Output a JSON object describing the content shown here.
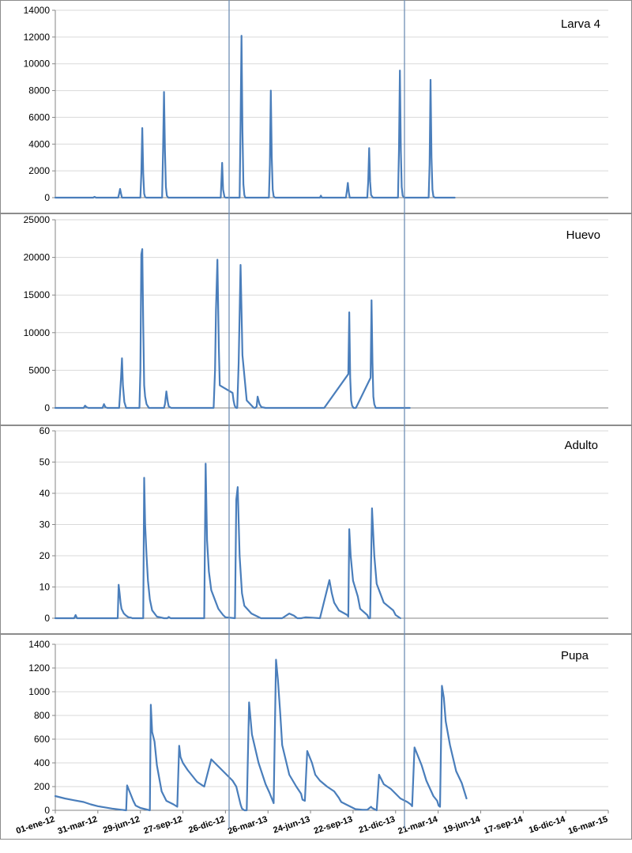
{
  "colors": {
    "series": "#4a7ebb",
    "grid": "#d9d9d9",
    "axis": "#868686",
    "separator": "#6f8fb5",
    "frame": "#8c8c8c",
    "text": "#000000"
  },
  "x_ticks": [
    "01-ene-12",
    "31-mar-12",
    "29-jun-12",
    "27-sep-12",
    "26-dic-12",
    "26-mar-13",
    "24-jun-13",
    "22-sep-13",
    "21-dic-13",
    "21-mar-14",
    "19-jun-14",
    "17-sep-14",
    "16-dic-14",
    "16-mar-15"
  ],
  "chart_data": [
    {
      "type": "line",
      "title": "Larva 4",
      "xlim": [
        0,
        1170
      ],
      "ylim": [
        0,
        14000
      ],
      "yticks": [
        0,
        2000,
        4000,
        6000,
        8000,
        10000,
        12000,
        14000
      ],
      "grid": true,
      "series": [
        {
          "x": [
            0,
            80,
            83,
            86,
            90,
            133,
            135,
            137,
            139,
            141,
            180,
            182,
            184,
            186,
            188,
            190,
            192,
            226,
            228,
            230,
            232,
            234,
            236,
            239,
            345,
            350,
            353,
            355,
            358,
            360,
            390,
            392,
            394,
            396,
            398,
            400,
            402,
            452,
            454,
            456,
            458,
            460,
            462,
            465,
            530,
            560,
            562,
            564,
            566,
            568,
            615,
            617,
            619,
            621,
            623,
            660,
            662,
            664,
            666,
            668,
            672,
            725,
            727,
            729,
            731,
            733,
            735,
            738,
            790,
            792,
            794,
            796,
            798,
            800,
            803,
            845
          ],
          "y": [
            0,
            0,
            60,
            0,
            0,
            0,
            300,
            650,
            300,
            0,
            0,
            1800,
            5200,
            1800,
            300,
            50,
            0,
            0,
            3500,
            7900,
            3500,
            800,
            150,
            0,
            0,
            0,
            2600,
            600,
            50,
            0,
            0,
            5500,
            12100,
            5000,
            1000,
            200,
            0,
            0,
            2500,
            8000,
            3000,
            600,
            100,
            0,
            0,
            0,
            150,
            0,
            0,
            0,
            0,
            500,
            1100,
            400,
            0,
            0,
            1200,
            3700,
            1200,
            200,
            0,
            0,
            3500,
            9500,
            3500,
            800,
            150,
            0,
            0,
            2500,
            8800,
            3000,
            600,
            100,
            0,
            0
          ]
        }
      ]
    },
    {
      "type": "line",
      "title": "Huevo",
      "xlim": [
        0,
        1170
      ],
      "ylim": [
        0,
        25000
      ],
      "yticks": [
        0,
        5000,
        10000,
        15000,
        20000,
        25000
      ],
      "grid": true,
      "series": [
        {
          "x": [
            0,
            60,
            63,
            66,
            70,
            100,
            103,
            106,
            110,
            135,
            137,
            139,
            141,
            143,
            146,
            150,
            178,
            180,
            182,
            184,
            186,
            188,
            190,
            193,
            198,
            230,
            232,
            235,
            238,
            240,
            245,
            250,
            335,
            338,
            340,
            343,
            346,
            348,
            375,
            377,
            379,
            381,
            383,
            385,
            388,
            392,
            396,
            405,
            420,
            423,
            426,
            428,
            432,
            436,
            445,
            560,
            563,
            566,
            569,
            620,
            622,
            624,
            626,
            628,
            631,
            636,
            667,
            669,
            671,
            673,
            675,
            678,
            683,
            715,
            717,
            719,
            721,
            723,
            726,
            731,
            750
          ],
          "y": [
            0,
            0,
            300,
            100,
            0,
            0,
            500,
            100,
            0,
            0,
            2000,
            4000,
            6600,
            3000,
            800,
            0,
            0,
            5000,
            20400,
            21100,
            11000,
            3000,
            1500,
            500,
            0,
            0,
            500,
            2200,
            800,
            200,
            0,
            0,
            0,
            5000,
            13000,
            19700,
            8000,
            3000,
            2000,
            1000,
            400,
            100,
            0,
            0,
            6000,
            19000,
            7000,
            1000,
            0,
            0,
            200,
            1500,
            500,
            100,
            0,
            0,
            0,
            0,
            0,
            4500,
            12700,
            4000,
            1000,
            300,
            0,
            0,
            4000,
            14300,
            6000,
            1500,
            500,
            0,
            0,
            0,
            0,
            0,
            0,
            0,
            0,
            0,
            0
          ]
        }
      ]
    },
    {
      "type": "line",
      "title": "Adulto",
      "xlim": [
        0,
        1170
      ],
      "ylim": [
        0,
        60
      ],
      "yticks": [
        0,
        10,
        20,
        30,
        40,
        50,
        60
      ],
      "grid": true,
      "series": [
        {
          "x": [
            0,
            40,
            43,
            46,
            50,
            68,
            70,
            72,
            74,
            83,
            132,
            134,
            136,
            138,
            140,
            145,
            150,
            155,
            160,
            163,
            168,
            175,
            180,
            186,
            188,
            190,
            193,
            196,
            200,
            205,
            215,
            230,
            237,
            240,
            244,
            250,
            272,
            315,
            318,
            321,
            325,
            330,
            340,
            345,
            350,
            355,
            360,
            380,
            383,
            386,
            390,
            395,
            400,
            415,
            435,
            470,
            480,
            485,
            495,
            505,
            512,
            517,
            520,
            530,
            560,
            580,
            585,
            590,
            600,
            618,
            620,
            622,
            625,
            630,
            640,
            645,
            660,
            663,
            666,
            670,
            675,
            680,
            695,
            715,
            720,
            730
          ],
          "y": [
            0,
            0,
            1,
            0,
            0,
            0,
            0,
            0,
            0,
            0,
            0,
            10.7,
            8,
            5,
            3,
            1.5,
            0.8,
            0.3,
            0.2,
            0,
            0,
            0,
            0,
            0,
            45,
            30,
            20,
            12,
            6,
            2.5,
            0.5,
            0,
            0,
            0.4,
            0,
            0,
            0,
            0,
            49.5,
            25,
            15,
            9,
            5,
            3,
            2,
            1,
            0.3,
            0,
            38,
            42,
            20,
            8,
            4,
            1.5,
            0,
            0,
            0,
            0.5,
            1.5,
            0.8,
            0,
            0,
            0,
            0.3,
            0,
            12.2,
            8,
            5,
            2.5,
            1,
            0.5,
            28.5,
            20,
            12,
            7,
            3,
            1,
            0,
            0,
            35.2,
            20,
            11,
            5,
            2.5,
            1,
            0
          ]
        }
      ]
    },
    {
      "type": "line",
      "title": "Pupa",
      "xlim": [
        0,
        1170
      ],
      "ylim": [
        0,
        1400
      ],
      "yticks": [
        0,
        200,
        400,
        600,
        800,
        1000,
        1200,
        1400
      ],
      "grid": true,
      "series": [
        {
          "x": [
            0,
            20,
            40,
            60,
            75,
            90,
            105,
            120,
            140,
            150,
            152,
            155,
            160,
            165,
            170,
            180,
            190,
            200,
            202,
            205,
            210,
            212,
            215,
            225,
            235,
            250,
            258,
            262,
            265,
            270,
            280,
            290,
            300,
            315,
            330,
            345,
            360,
            375,
            383,
            386,
            392,
            395,
            400,
            405,
            410,
            416,
            430,
            445,
            453,
            458,
            462,
            467,
            471,
            476,
            480,
            495,
            510,
            520,
            523,
            528,
            533,
            538,
            543,
            550,
            560,
            575,
            590,
            600,
            602,
            605,
            615,
            625,
            635,
            650,
            660,
            668,
            670,
            675,
            680,
            685,
            695,
            710,
            730,
            745,
            752,
            755,
            760,
            765,
            775,
            785,
            800,
            808,
            811,
            814,
            818,
            822,
            826,
            835,
            848,
            860,
            870
          ],
          "y": [
            120,
            100,
            85,
            70,
            50,
            35,
            25,
            15,
            5,
            0,
            210,
            180,
            130,
            80,
            40,
            20,
            10,
            0,
            890,
            660,
            580,
            500,
            380,
            160,
            80,
            50,
            30,
            545,
            450,
            400,
            340,
            290,
            240,
            200,
            430,
            370,
            310,
            250,
            200,
            150,
            50,
            15,
            0,
            0,
            910,
            640,
            400,
            220,
            150,
            100,
            60,
            1270,
            1100,
            810,
            550,
            300,
            200,
            140,
            90,
            80,
            500,
            450,
            400,
            300,
            250,
            200,
            160,
            105,
            90,
            70,
            50,
            30,
            10,
            5,
            5,
            30,
            20,
            10,
            0,
            300,
            220,
            180,
            100,
            70,
            50,
            35,
            530,
            480,
            380,
            250,
            120,
            80,
            40,
            30,
            1050,
            950,
            750,
            550,
            330,
            230,
            100
          ]
        }
      ]
    }
  ]
}
